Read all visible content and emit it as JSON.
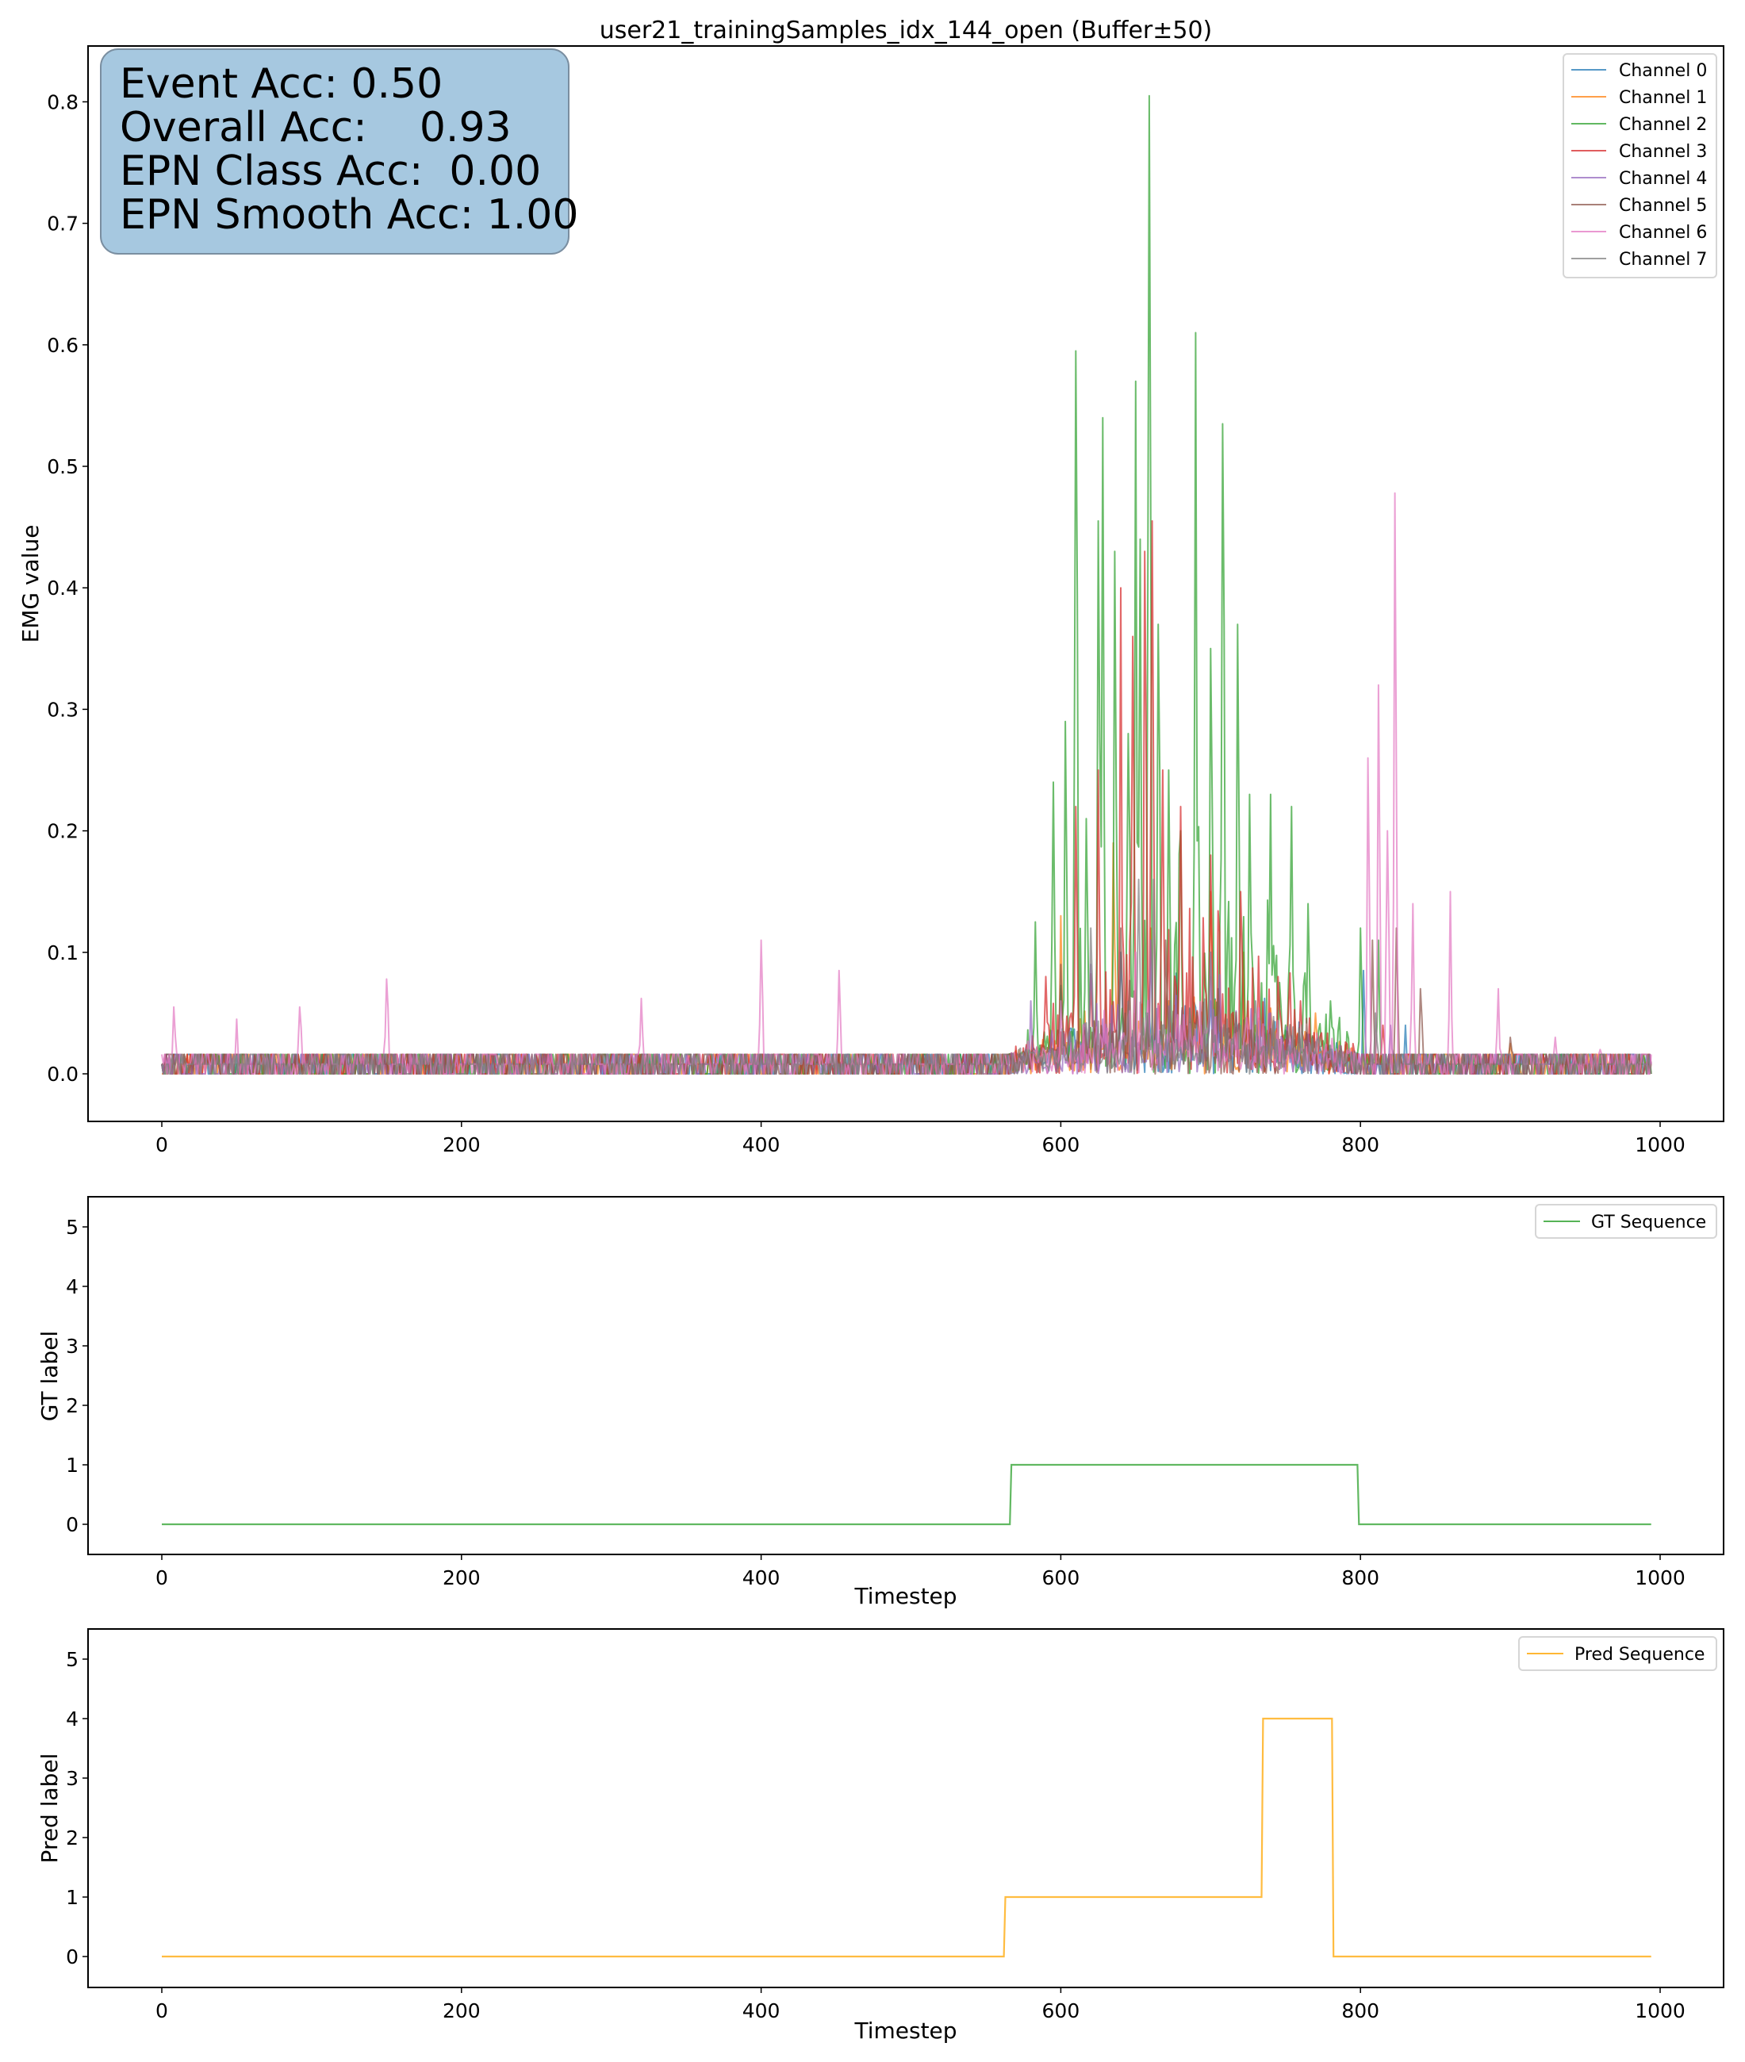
{
  "figure": {
    "title": "user21_trainingSamples_idx_144_open (Buffer±50)"
  },
  "stats_box": {
    "lines": [
      "Event Acc: 0.50",
      "Overall Acc:    0.93",
      "EPN Class Acc:  0.00",
      "EPN Smooth Acc: 1.00"
    ],
    "background": "#a6c8e0"
  },
  "chart_data": [
    {
      "type": "line",
      "id": "emg",
      "title": "user21_trainingSamples_idx_144_open (Buffer±50)",
      "xlabel": "",
      "ylabel": "EMG value",
      "xlim": [
        -50,
        1045
      ],
      "ylim": [
        -0.04,
        0.84
      ],
      "xticks": [
        0,
        200,
        400,
        600,
        800,
        1000
      ],
      "xtick_labels": [
        "0",
        "200",
        "400",
        "600",
        "800",
        "1000"
      ],
      "yticks": [
        0.0,
        0.1,
        0.2,
        0.3,
        0.4,
        0.5,
        0.6,
        0.7,
        0.8
      ],
      "ytick_labels": [
        "0.0",
        "0.1",
        "0.2",
        "0.3",
        "0.4",
        "0.5",
        "0.6",
        "0.7",
        "0.8"
      ],
      "legend_position": "upper right",
      "x_range": [
        0,
        994
      ],
      "baseline": 0.0,
      "baseline_quantum": 0.008,
      "activity_window": [
        565,
        800
      ],
      "series": [
        {
          "name": "Channel 0",
          "color": "#1f77b4",
          "peaks": [
            [
              600,
              0.07
            ],
            [
              640,
              0.1
            ],
            [
              700,
              0.06
            ],
            [
              802,
              0.085
            ],
            [
              830,
              0.04
            ]
          ]
        },
        {
          "name": "Channel 1",
          "color": "#ff7f0e",
          "peaks": [
            [
              600,
              0.13
            ],
            [
              635,
              0.19
            ],
            [
              660,
              0.12
            ],
            [
              700,
              0.15
            ],
            [
              722,
              0.1
            ],
            [
              770,
              0.05
            ],
            [
              900,
              0.025
            ]
          ]
        },
        {
          "name": "Channel 2",
          "color": "#2ca02c",
          "peaks": [
            [
              583,
              0.125
            ],
            [
              595,
              0.24
            ],
            [
              603,
              0.29
            ],
            [
              610,
              0.595
            ],
            [
              617,
              0.21
            ],
            [
              625,
              0.455
            ],
            [
              628,
              0.54
            ],
            [
              636,
              0.43
            ],
            [
              645,
              0.28
            ],
            [
              650,
              0.57
            ],
            [
              653,
              0.44
            ],
            [
              659,
              0.805
            ],
            [
              665,
              0.37
            ],
            [
              672,
              0.25
            ],
            [
              680,
              0.2
            ],
            [
              690,
              0.61
            ],
            [
              700,
              0.35
            ],
            [
              708,
              0.535
            ],
            [
              718,
              0.37
            ],
            [
              726,
              0.23
            ],
            [
              740,
              0.23
            ],
            [
              754,
              0.22
            ],
            [
              765,
              0.14
            ],
            [
              780,
              0.06
            ],
            [
              800,
              0.12
            ],
            [
              812,
              0.11
            ]
          ]
        },
        {
          "name": "Channel 3",
          "color": "#d62728",
          "peaks": [
            [
              590,
              0.08
            ],
            [
              610,
              0.22
            ],
            [
              625,
              0.25
            ],
            [
              640,
              0.4
            ],
            [
              648,
              0.36
            ],
            [
              656,
              0.43
            ],
            [
              661,
              0.455
            ],
            [
              668,
              0.25
            ],
            [
              680,
              0.22
            ],
            [
              700,
              0.18
            ],
            [
              720,
              0.15
            ],
            [
              745,
              0.08
            ],
            [
              760,
              0.06
            ],
            [
              815,
              0.04
            ]
          ]
        },
        {
          "name": "Channel 4",
          "color": "#9467bd",
          "peaks": [
            [
              580,
              0.06
            ],
            [
              620,
              0.09
            ],
            [
              660,
              0.11
            ],
            [
              700,
              0.08
            ],
            [
              740,
              0.05
            ],
            [
              820,
              0.04
            ]
          ]
        },
        {
          "name": "Channel 5",
          "color": "#8c564b",
          "peaks": [
            [
              600,
              0.09
            ],
            [
              640,
              0.12
            ],
            [
              670,
              0.11
            ],
            [
              705,
              0.07
            ],
            [
              808,
              0.11
            ],
            [
              824,
              0.12
            ],
            [
              840,
              0.07
            ],
            [
              900,
              0.03
            ]
          ]
        },
        {
          "name": "Channel 6",
          "color": "#e377c2",
          "peaks": [
            [
              8,
              0.055
            ],
            [
              50,
              0.045
            ],
            [
              92,
              0.055
            ],
            [
              150,
              0.078
            ],
            [
              320,
              0.062
            ],
            [
              400,
              0.11
            ],
            [
              452,
              0.085
            ],
            [
              600,
              0.06
            ],
            [
              650,
              0.1
            ],
            [
              700,
              0.1
            ],
            [
              805,
              0.26
            ],
            [
              812,
              0.32
            ],
            [
              818,
              0.2
            ],
            [
              823,
              0.478
            ],
            [
              835,
              0.14
            ],
            [
              860,
              0.15
            ],
            [
              892,
              0.07
            ],
            [
              930,
              0.03
            ],
            [
              960,
              0.02
            ]
          ]
        },
        {
          "name": "Channel 7",
          "color": "#7f7f7f",
          "peaks": [
            [
              620,
              0.12
            ],
            [
              652,
              0.16
            ],
            [
              662,
              0.16
            ],
            [
              700,
              0.1
            ],
            [
              730,
              0.06
            ],
            [
              810,
              0.05
            ]
          ]
        }
      ]
    },
    {
      "type": "line",
      "id": "gt",
      "xlabel": "Timestep",
      "ylabel": "GT label",
      "xlim": [
        -50,
        1045
      ],
      "ylim": [
        -0.5,
        5.5
      ],
      "xticks": [
        0,
        200,
        400,
        600,
        800,
        1000
      ],
      "xtick_labels": [
        "0",
        "200",
        "400",
        "600",
        "800",
        "1000"
      ],
      "yticks": [
        0,
        1,
        2,
        3,
        4,
        5
      ],
      "ytick_labels": [
        "0",
        "1",
        "2",
        "3",
        "4",
        "5"
      ],
      "legend_position": "upper right",
      "series": [
        {
          "name": "GT Sequence",
          "color": "#2ca02c",
          "x": [
            0,
            566,
            567,
            798,
            799,
            994
          ],
          "y": [
            0,
            0,
            1,
            1,
            0,
            0
          ]
        }
      ]
    },
    {
      "type": "line",
      "id": "pred",
      "xlabel": "Timestep",
      "ylabel": "Pred label",
      "xlim": [
        -50,
        1045
      ],
      "ylim": [
        -0.5,
        5.5
      ],
      "xticks": [
        0,
        200,
        400,
        600,
        800,
        1000
      ],
      "xtick_labels": [
        "0",
        "200",
        "400",
        "600",
        "800",
        "1000"
      ],
      "yticks": [
        0,
        1,
        2,
        3,
        4,
        5
      ],
      "ytick_labels": [
        "0",
        "1",
        "2",
        "3",
        "4",
        "5"
      ],
      "legend_position": "upper right",
      "series": [
        {
          "name": "Pred Sequence",
          "color": "#ffa500",
          "x": [
            0,
            562,
            563,
            734,
            735,
            781,
            782,
            994
          ],
          "y": [
            0,
            0,
            1,
            1,
            4,
            4,
            0,
            0
          ]
        }
      ]
    }
  ]
}
